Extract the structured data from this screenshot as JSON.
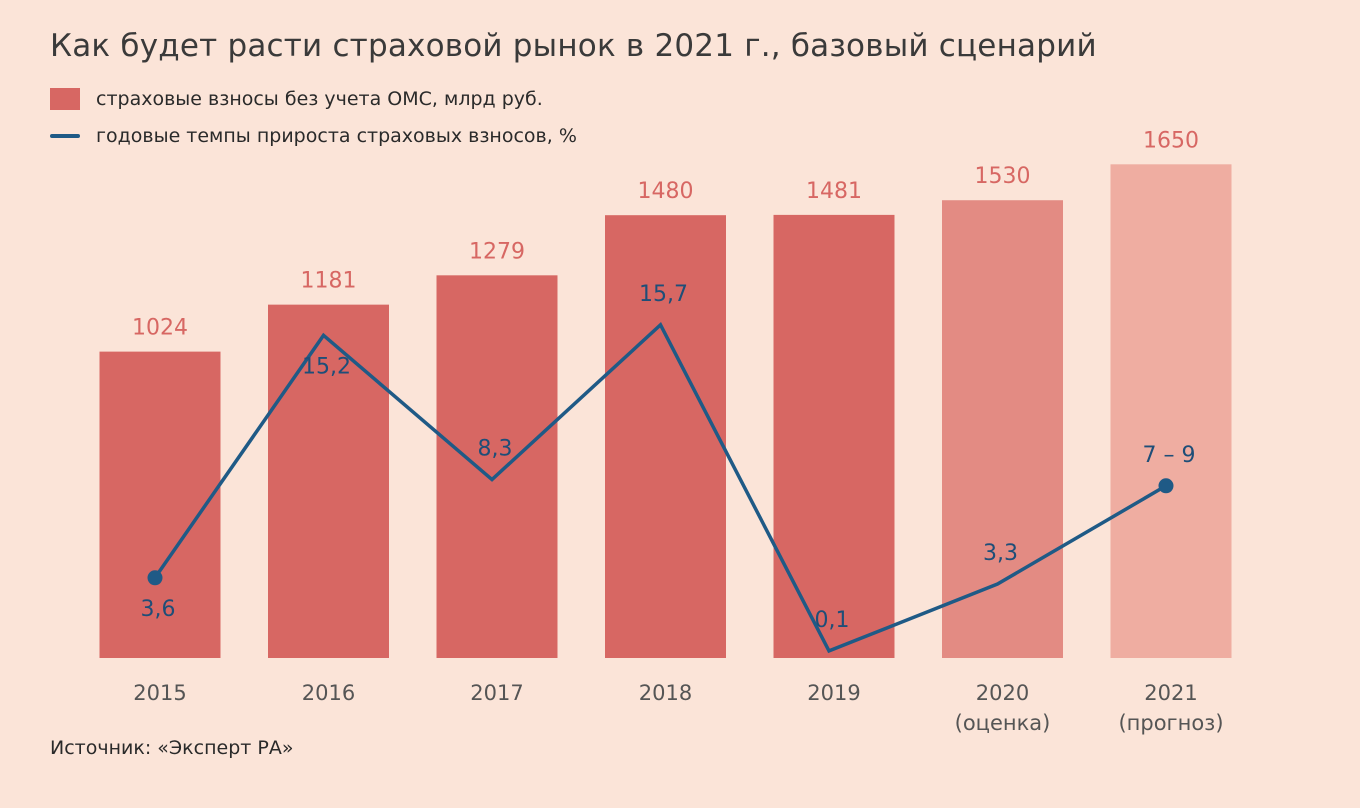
{
  "title": "Как будет расти страховой рынок в 2021 г., базовый сценарий",
  "source": "Источник: «Эксперт РА»",
  "colors": {
    "background": "#fbe4d8",
    "bar_actual": "#d76763",
    "bar_estimate": "#e38b83",
    "bar_forecast": "#efada1",
    "bar_label": "#d76763",
    "line": "#1f5a86",
    "line_label": "#1e4e78",
    "axis_label": "#555555"
  },
  "legend": [
    {
      "icon": "bar-swatch",
      "label": "страховые взносы без учета ОМС, млрд руб."
    },
    {
      "icon": "line-swatch",
      "label": "годовые темпы прироста страховых взносов, %"
    }
  ],
  "chart_data": {
    "type": "bar",
    "categories": [
      [
        "2015"
      ],
      [
        "2016"
      ],
      [
        "2017"
      ],
      [
        "2018"
      ],
      [
        "2019"
      ],
      [
        "2020",
        "(оценка)"
      ],
      [
        "2021",
        "(прогноз)"
      ]
    ],
    "bar_kinds": [
      "actual",
      "actual",
      "actual",
      "actual",
      "actual",
      "estimate",
      "forecast"
    ],
    "series": [
      {
        "name": "страховые взносы без учета ОМС, млрд руб.",
        "kind": "bar",
        "values": [
          1024,
          1181,
          1279,
          1480,
          1481,
          1530,
          1650
        ],
        "labels": [
          "1024",
          "1181",
          "1279",
          "1480",
          "1481",
          "1530",
          "1650"
        ]
      },
      {
        "name": "годовые темпы прироста страховых взносов, %",
        "kind": "line",
        "values": [
          3.6,
          15.2,
          8.3,
          15.7,
          0.1,
          3.3,
          8
        ],
        "labels": [
          "3,6",
          "15,2",
          "8,3",
          "15,7",
          "0,1",
          "3,3",
          "7 – 9"
        ],
        "markers": [
          true,
          false,
          false,
          false,
          false,
          false,
          true
        ]
      }
    ],
    "legend_position": "top-left",
    "grid": false
  }
}
